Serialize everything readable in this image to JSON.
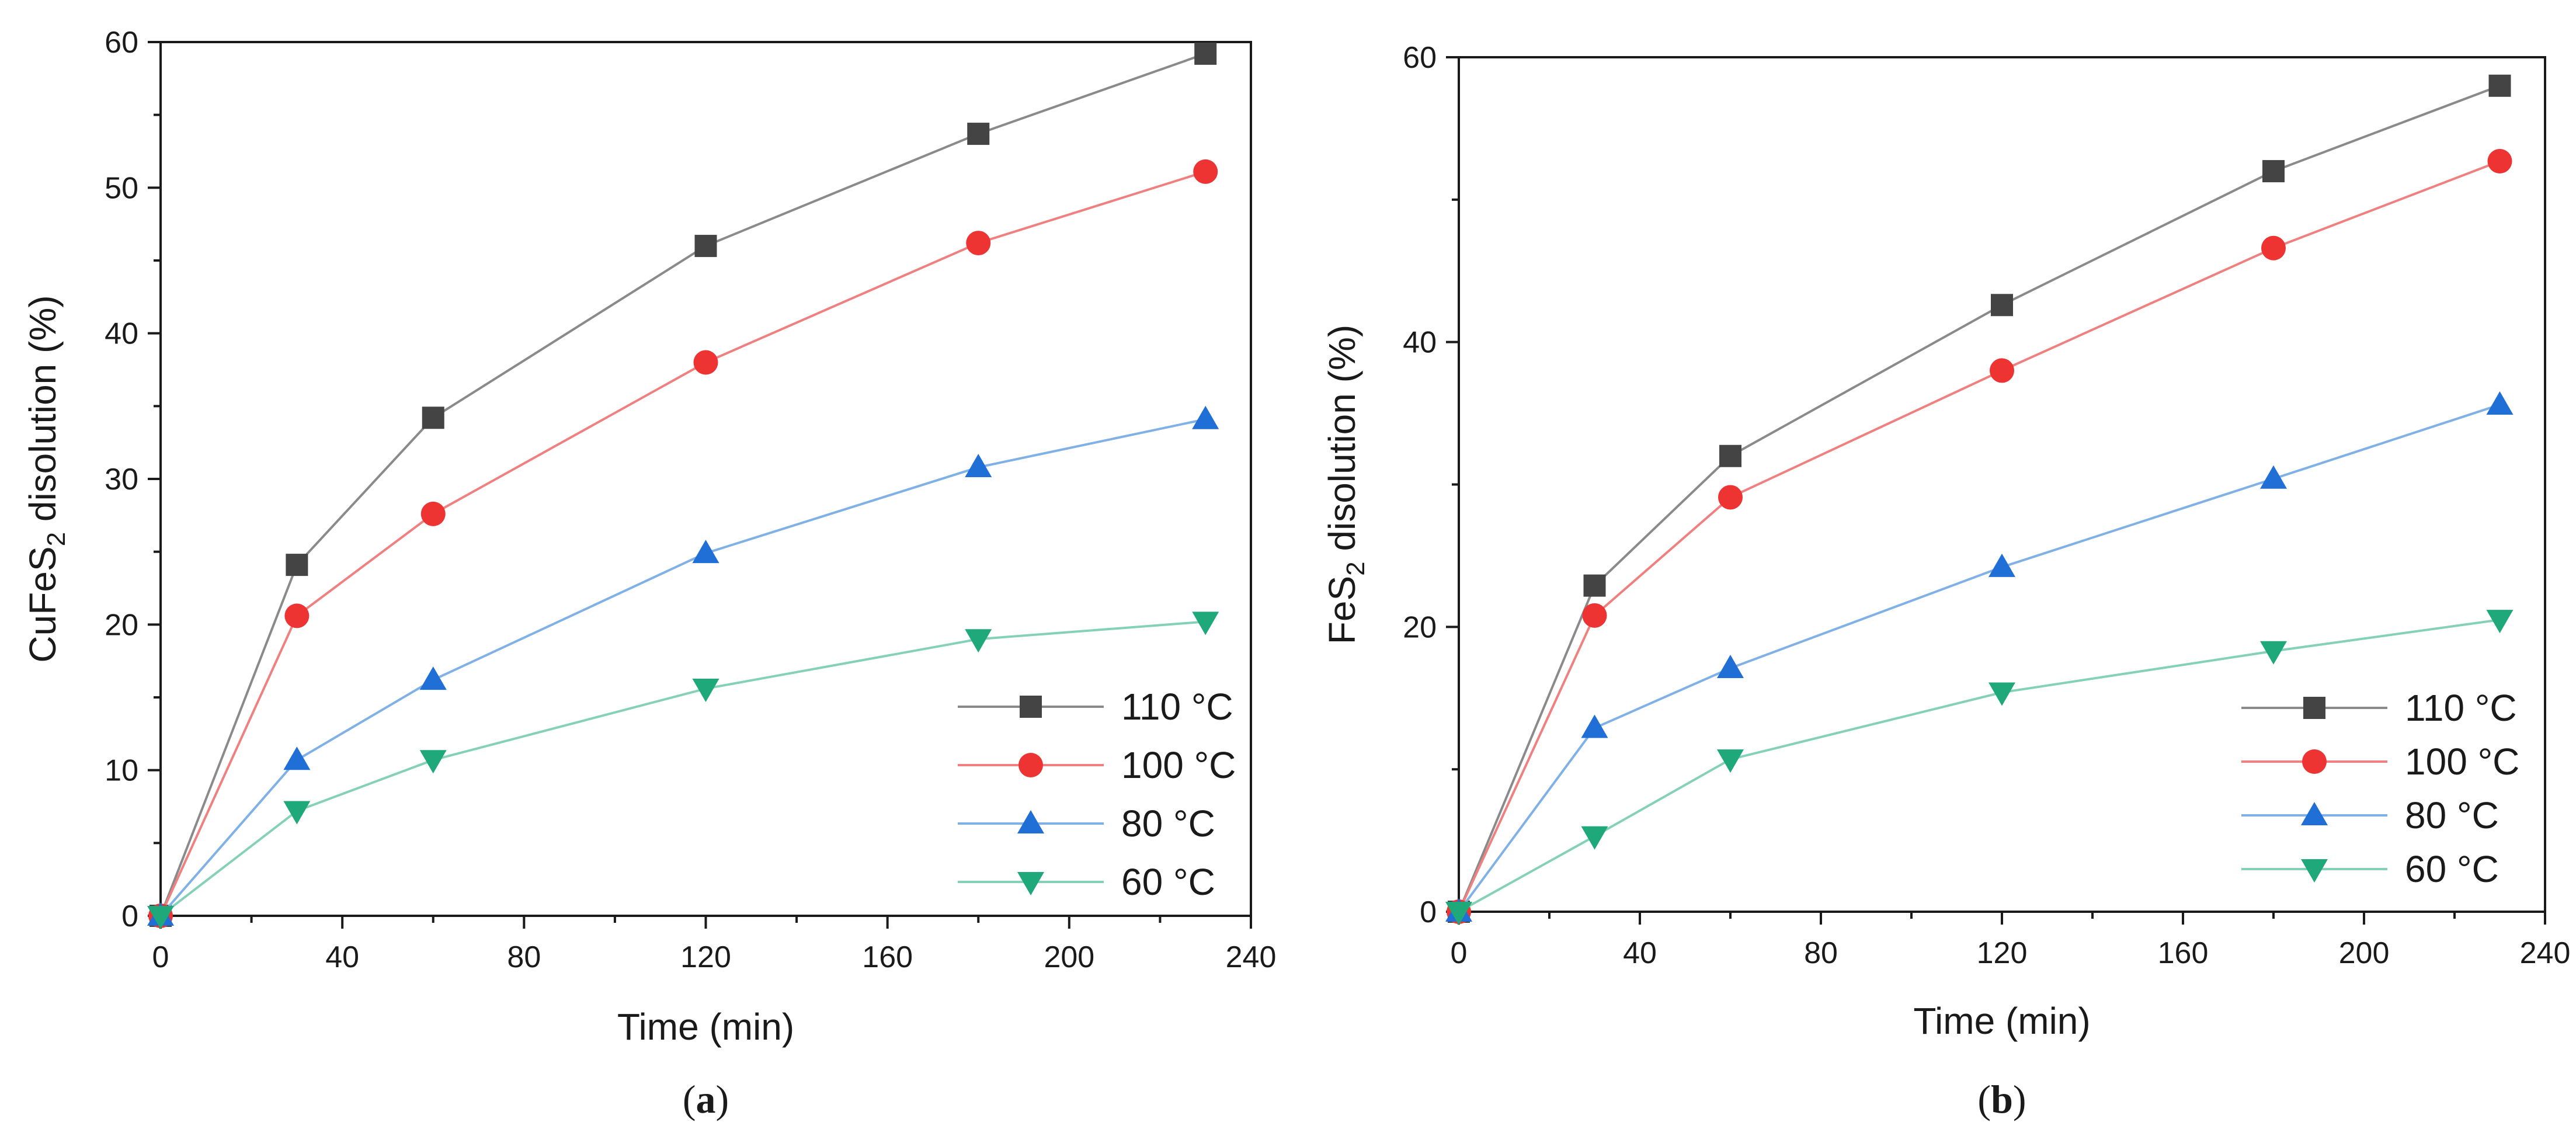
{
  "chart_data": [
    {
      "type": "line",
      "panel_label": "a",
      "title": "",
      "xlabel": "Time (min)",
      "ylabel_main": "CuFeS",
      "ylabel_sub": "2",
      "ylabel_rest": " disolution (%)",
      "xlim": [
        0,
        240
      ],
      "ylim": [
        0,
        60
      ],
      "xticks": [
        0,
        40,
        80,
        120,
        160,
        200,
        240
      ],
      "yticks": [
        0,
        10,
        20,
        30,
        40,
        50,
        60
      ],
      "legend_position": "bottom-right",
      "x": [
        0,
        30,
        60,
        120,
        180,
        230
      ],
      "series": [
        {
          "name": "110 °C",
          "color": "#444444",
          "marker": "square",
          "line_color": "#8a8a8a",
          "values": [
            0,
            24.1,
            34.2,
            46.0,
            53.7,
            59.2
          ]
        },
        {
          "name": "100 °C",
          "color": "#ee3333",
          "marker": "circle",
          "line_color": "#f08080",
          "values": [
            0,
            20.6,
            27.6,
            38.0,
            46.2,
            51.1
          ]
        },
        {
          "name": "80 °C",
          "color": "#1f6fd6",
          "marker": "triangle-up",
          "line_color": "#7fb0e6",
          "values": [
            0,
            10.7,
            16.2,
            24.9,
            30.8,
            34.1
          ]
        },
        {
          "name": "60 °C",
          "color": "#1fa87a",
          "marker": "triangle-down",
          "line_color": "#85d1b8",
          "values": [
            0,
            7.2,
            10.7,
            15.6,
            19.0,
            20.2
          ]
        }
      ]
    },
    {
      "type": "line",
      "panel_label": "b",
      "title": "",
      "xlabel": "Time (min)",
      "ylabel_main": "FeS",
      "ylabel_sub": "2",
      "ylabel_rest": " disolution (%)",
      "xlim": [
        0,
        240
      ],
      "ylim": [
        0,
        60
      ],
      "xticks": [
        0,
        40,
        80,
        120,
        160,
        200,
        240
      ],
      "yticks": [
        0,
        20,
        40,
        60
      ],
      "legend_position": "bottom-right",
      "x": [
        0,
        30,
        60,
        120,
        180,
        230
      ],
      "series": [
        {
          "name": "110 °C",
          "color": "#444444",
          "marker": "square",
          "line_color": "#8a8a8a",
          "values": [
            0,
            22.9,
            32.0,
            42.6,
            52.0,
            58.0
          ]
        },
        {
          "name": "100 °C",
          "color": "#ee3333",
          "marker": "circle",
          "line_color": "#f08080",
          "values": [
            0,
            20.8,
            29.1,
            38.0,
            46.6,
            52.7
          ]
        },
        {
          "name": "80 °C",
          "color": "#1f6fd6",
          "marker": "triangle-up",
          "line_color": "#7fb0e6",
          "values": [
            0,
            12.9,
            17.1,
            24.2,
            30.4,
            35.6
          ]
        },
        {
          "name": "60 °C",
          "color": "#1fa87a",
          "marker": "triangle-down",
          "line_color": "#85d1b8",
          "values": [
            0,
            5.3,
            10.7,
            15.4,
            18.3,
            20.5
          ]
        }
      ]
    }
  ]
}
